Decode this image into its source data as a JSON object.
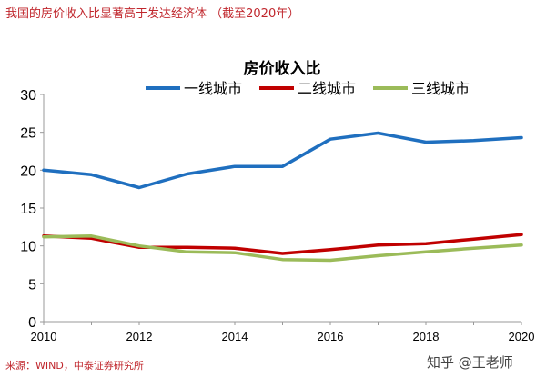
{
  "header": {
    "title": "我国的房价收入比显著高于发达经济体 （截至2020年）"
  },
  "footer": {
    "source": "来源：WIND，中泰证券研究所",
    "watermark": "知乎 @王老师"
  },
  "colors": {
    "accent": "#c0272d",
    "tier1": "#1f6fbf",
    "tier2": "#c00000",
    "tier3": "#9bbb59"
  },
  "chart_data": {
    "type": "line",
    "title": "房价收入比",
    "xlabel": "",
    "ylabel": "",
    "xlim": [
      2010,
      2020
    ],
    "ylim": [
      0,
      30
    ],
    "x_ticks": [
      2010,
      2012,
      2014,
      2016,
      2018,
      2020
    ],
    "y_ticks": [
      0,
      5,
      10,
      15,
      20,
      25,
      30
    ],
    "legend_position": "top",
    "grid": false,
    "x": [
      2010,
      2011,
      2012,
      2013,
      2014,
      2015,
      2016,
      2017,
      2018,
      2019,
      2020
    ],
    "series": [
      {
        "name": "一线城市",
        "color": "#1f6fbf",
        "values": [
          20.0,
          19.4,
          17.7,
          19.5,
          20.5,
          20.5,
          24.1,
          24.9,
          23.7,
          23.9,
          24.3
        ]
      },
      {
        "name": "二线城市",
        "color": "#c00000",
        "values": [
          11.3,
          11.0,
          9.8,
          9.8,
          9.7,
          9.0,
          9.5,
          10.1,
          10.3,
          10.9,
          11.5
        ]
      },
      {
        "name": "三线城市",
        "color": "#9bbb59",
        "values": [
          11.2,
          11.3,
          10.0,
          9.2,
          9.1,
          8.2,
          8.1,
          8.7,
          9.2,
          9.7,
          10.1
        ]
      }
    ]
  }
}
